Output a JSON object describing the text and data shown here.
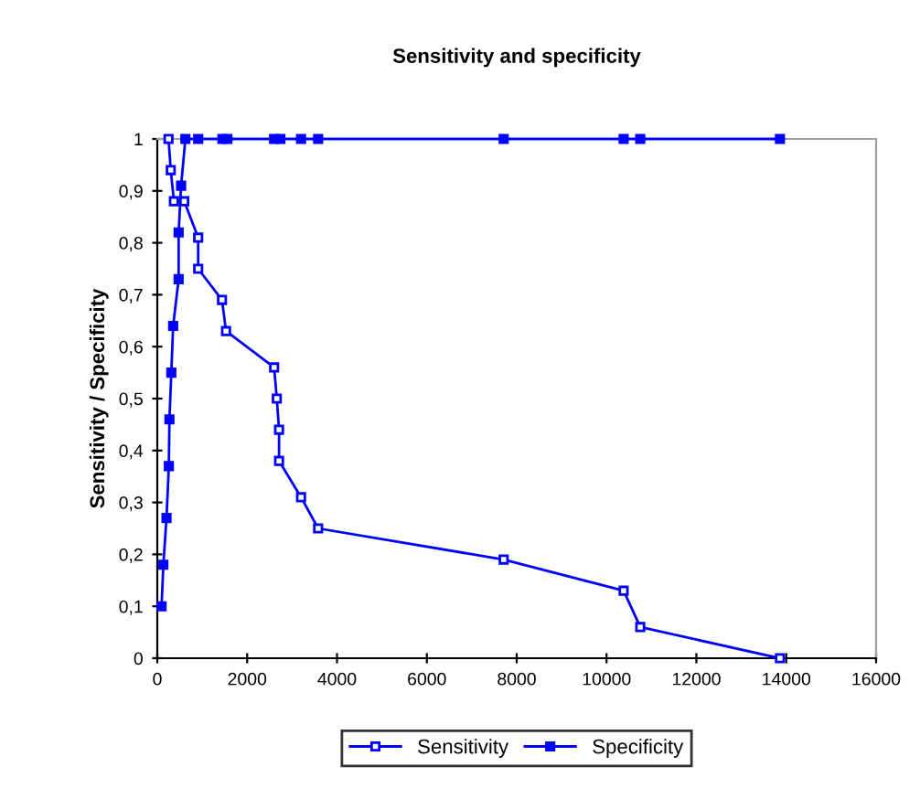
{
  "chart_data": {
    "type": "line",
    "title": "Sensitivity and specificity",
    "ylabel": "Sensitivity / Specificity",
    "xlim": [
      0,
      16000
    ],
    "xticks": [
      0,
      2000,
      4000,
      6000,
      8000,
      10000,
      12000,
      14000,
      16000
    ],
    "ylim": [
      0,
      1
    ],
    "yticks": [
      0,
      {
        "value": 0.1,
        "label": "0,1"
      },
      {
        "value": 0.2,
        "label": "0,2"
      },
      {
        "value": 0.3,
        "label": "0,3"
      },
      {
        "value": 0.4,
        "label": "0,4"
      },
      {
        "value": 0.5,
        "label": "0,5"
      },
      {
        "value": 0.6,
        "label": "0,6"
      },
      {
        "value": 0.7,
        "label": "0,7"
      },
      {
        "value": 0.8,
        "label": "0,8"
      },
      {
        "value": 0.9,
        "label": "0,9"
      },
      1
    ],
    "grid": false,
    "legend": "bottom",
    "marker": "square",
    "line_style": "solid",
    "series": [
      {
        "name": "Sensitivity",
        "color": "#0000ff",
        "x": [
          250,
          300,
          370,
          600,
          910,
          910,
          1440,
          1530,
          2600,
          2660,
          2710,
          2710,
          3200,
          3580,
          7710,
          10380,
          10750,
          13860
        ],
        "values": [
          1,
          0.94,
          0.88,
          0.88,
          0.81,
          0.75,
          0.69,
          0.63,
          0.56,
          0.5,
          0.44,
          0.38,
          0.31,
          0.25,
          0.19,
          0.13,
          0.06,
          0
        ]
      },
      {
        "name": "Specificity",
        "color": "#0000ff",
        "x": [
          95,
          135,
          205,
          257,
          270,
          312,
          353,
          475,
          475,
          530,
          625,
          910,
          1450,
          1560,
          2600,
          2740,
          3200,
          3580,
          7710,
          10380,
          10750,
          13860
        ],
        "values": [
          0.1,
          0.18,
          0.27,
          0.37,
          0.46,
          0.55,
          0.64,
          0.73,
          0.82,
          0.91,
          1,
          1,
          1,
          1,
          1,
          1,
          1,
          1,
          1,
          1,
          1,
          1
        ]
      }
    ]
  }
}
